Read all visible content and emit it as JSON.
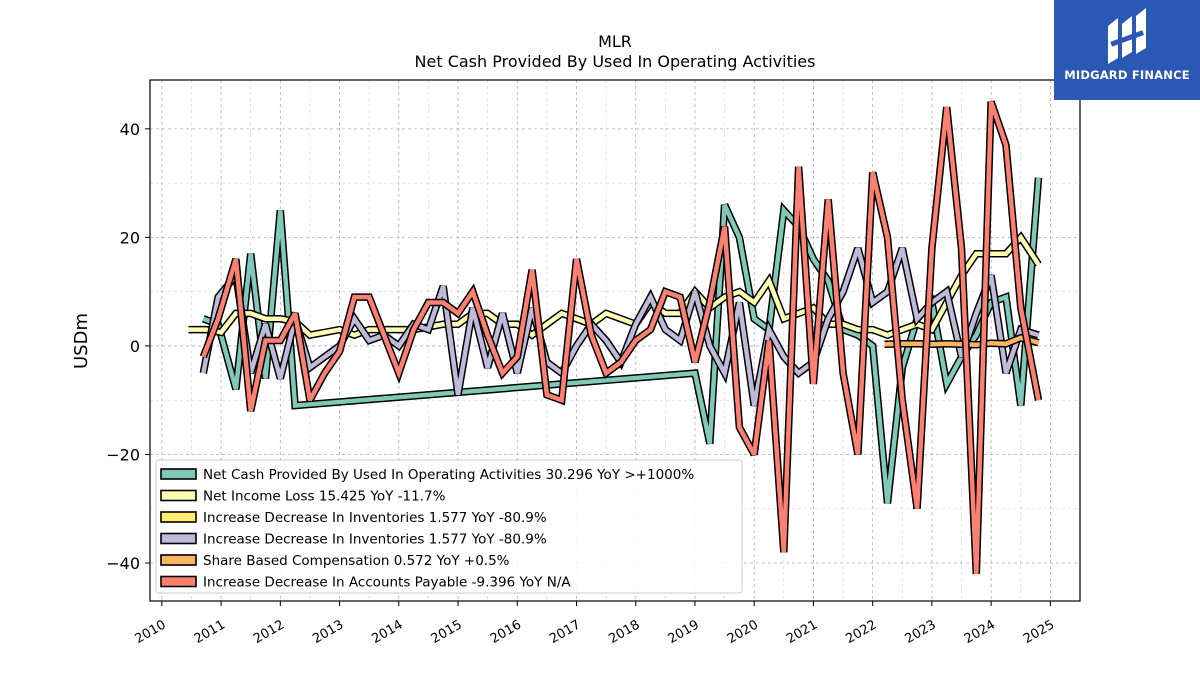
{
  "logo": {
    "text": "MIDGARD FINANCE",
    "color": "#2a58b4"
  },
  "chart_data": {
    "type": "line",
    "title": "MLR",
    "subtitle": "Net Cash Provided By Used In Operating Activities",
    "xlabel": "",
    "ylabel": "USDm",
    "xlim": [
      2009.8,
      2025.5
    ],
    "ylim": [
      -47,
      49
    ],
    "grid": true,
    "legend_position": "lower-left",
    "x_ticks": [
      "2010",
      "2011",
      "2012",
      "2013",
      "2014",
      "2015",
      "2016",
      "2017",
      "2018",
      "2019",
      "2020",
      "2021",
      "2022",
      "2023",
      "2024",
      "2025"
    ],
    "y_ticks": [
      -40,
      -20,
      0,
      20,
      40
    ],
    "y_tick_labels": [
      "−40",
      "−20",
      "0",
      "20",
      "40"
    ],
    "series": [
      {
        "name": "Net Cash Provided By Used In Operating Activities",
        "legend": "Net Cash Provided By Used In Operating Activities  30.296 YoY >+1000%",
        "color": "#7fc9b8",
        "x": [
          2010.7,
          2010.95,
          2011.25,
          2011.5,
          2011.75,
          2012.0,
          2012.25,
          2019.0,
          2019.25,
          2019.5,
          2019.75,
          2020.0,
          2020.25,
          2020.5,
          2020.75,
          2021.0,
          2021.25,
          2021.5,
          2021.75,
          2022.0,
          2022.25,
          2022.5,
          2022.75,
          2023.0,
          2023.25,
          2023.5,
          2023.75,
          2024.0,
          2024.25,
          2024.5,
          2024.8
        ],
        "y": [
          5,
          4,
          -8,
          17,
          -6,
          25,
          -11,
          -5,
          -18,
          26,
          20,
          5,
          3,
          25,
          22,
          16,
          12,
          3,
          2,
          0,
          -29,
          -4,
          5,
          8,
          -7,
          -2,
          2,
          8,
          9,
          -11,
          31
        ]
      },
      {
        "name": "Net Income Loss",
        "legend": "Net Income Loss  15.425 YoY -11.7%",
        "color": "#ffffb3",
        "x": [
          2010.45,
          2010.75,
          2011.0,
          2011.25,
          2011.5,
          2011.75,
          2012.0,
          2012.25,
          2012.5,
          2012.75,
          2013.0,
          2013.25,
          2013.5,
          2013.75,
          2014.0,
          2014.25,
          2014.5,
          2014.75,
          2015.0,
          2015.25,
          2015.5,
          2015.75,
          2016.0,
          2016.25,
          2016.5,
          2016.75,
          2017.0,
          2017.25,
          2017.5,
          2017.75,
          2018.0,
          2018.25,
          2018.5,
          2018.75,
          2019.0,
          2019.25,
          2019.5,
          2019.75,
          2020.0,
          2020.25,
          2020.5,
          2020.75,
          2021.0,
          2021.25,
          2021.5,
          2021.75,
          2022.0,
          2022.25,
          2022.5,
          2022.75,
          2023.0,
          2023.25,
          2023.5,
          2023.75,
          2024.0,
          2024.25,
          2024.5,
          2024.8
        ],
        "y": [
          3,
          3,
          2.5,
          6,
          6,
          5,
          5,
          4.5,
          2,
          2.5,
          3,
          2,
          3,
          3,
          3,
          3,
          3.5,
          4,
          4,
          6,
          6,
          4,
          4,
          2,
          4,
          6,
          5,
          4,
          6,
          5,
          4,
          8,
          6,
          6,
          10,
          7,
          9,
          10,
          8,
          12,
          5,
          6,
          7,
          4,
          4,
          3,
          3,
          2,
          3,
          4,
          3,
          8,
          13,
          17,
          17,
          17,
          20,
          15
        ]
      },
      {
        "name": "Increase Decrease In Inventories",
        "legend": "Increase Decrease In Inventories  1.577 YoY -80.9%",
        "color": "#ffed6f",
        "x": [],
        "y": []
      },
      {
        "name": "Increase Decrease In Inventories",
        "legend": "Increase Decrease In Inventories  1.577 YoY -80.9%",
        "color": "#bebada",
        "x": [
          2010.7,
          2010.95,
          2011.25,
          2011.5,
          2011.75,
          2012.0,
          2012.25,
          2012.5,
          2012.75,
          2013.0,
          2013.25,
          2013.5,
          2013.75,
          2014.0,
          2014.25,
          2014.5,
          2014.75,
          2015.0,
          2015.25,
          2015.5,
          2015.75,
          2016.0,
          2016.25,
          2016.5,
          2016.75,
          2017.0,
          2017.25,
          2017.5,
          2017.75,
          2018.0,
          2018.25,
          2018.5,
          2018.75,
          2019.0,
          2019.25,
          2019.5,
          2019.75,
          2020.0,
          2020.25,
          2020.5,
          2020.75,
          2021.0,
          2021.25,
          2021.5,
          2021.75,
          2022.0,
          2022.25,
          2022.5,
          2022.75,
          2023.0,
          2023.25,
          2023.5,
          2023.75,
          2024.0,
          2024.25,
          2024.5,
          2024.8
        ],
        "y": [
          -5,
          9,
          13,
          -5,
          4,
          -6,
          5,
          -4,
          -2,
          0,
          5,
          1,
          2,
          0,
          4,
          3,
          11,
          -9,
          7,
          -4,
          6,
          -5,
          7,
          -3,
          -5,
          0,
          4,
          1,
          -3,
          4,
          9,
          3,
          1,
          10,
          0,
          -5,
          8,
          -11,
          3,
          -2,
          -5,
          -3,
          5,
          10,
          18,
          8,
          10,
          18,
          5,
          8,
          10,
          -2,
          6,
          13,
          -5,
          3,
          2
        ]
      },
      {
        "name": "Share Based Compensation",
        "legend": "Share Based Compensation  0.572 YoY +0.5%",
        "color": "#fdb462",
        "x": [
          2022.2,
          2022.5,
          2022.75,
          2023.0,
          2023.25,
          2023.5,
          2023.75,
          2024.0,
          2024.25,
          2024.5,
          2024.8
        ],
        "y": [
          0.3,
          0.4,
          0.4,
          0.3,
          0.4,
          0.3,
          0.2,
          0.5,
          0.4,
          1.5,
          0.6
        ]
      },
      {
        "name": "Increase Decrease In Accounts Payable",
        "legend": "Increase Decrease In Accounts Payable  -9.396 YoY N/A",
        "color": "#fb8072",
        "x": [
          2010.7,
          2010.95,
          2011.25,
          2011.5,
          2011.75,
          2012.0,
          2012.25,
          2012.5,
          2012.75,
          2013.0,
          2013.25,
          2013.5,
          2013.75,
          2014.0,
          2014.25,
          2014.5,
          2014.75,
          2015.0,
          2015.25,
          2015.5,
          2015.75,
          2016.0,
          2016.25,
          2016.5,
          2016.75,
          2017.0,
          2017.25,
          2017.5,
          2017.75,
          2018.0,
          2018.25,
          2018.5,
          2018.75,
          2019.0,
          2019.25,
          2019.5,
          2019.75,
          2020.0,
          2020.25,
          2020.5,
          2020.75,
          2021.0,
          2021.25,
          2021.5,
          2021.75,
          2022.0,
          2022.25,
          2022.5,
          2022.75,
          2023.0,
          2023.25,
          2023.5,
          2023.75,
          2024.0,
          2024.25,
          2024.5,
          2024.8
        ],
        "y": [
          -2,
          5,
          16,
          -12,
          1,
          1,
          6,
          -10,
          -5,
          -1,
          9,
          9,
          2,
          -5,
          3,
          8,
          8,
          6,
          10,
          2,
          -5,
          -2,
          14,
          -9,
          -10,
          16,
          2,
          -5,
          -3,
          1,
          3,
          10,
          9,
          -3,
          8,
          22,
          -15,
          -20,
          1,
          -38,
          33,
          -7,
          27,
          -5,
          -20,
          32,
          20,
          -10,
          -30,
          18,
          44,
          18,
          -42,
          45,
          37,
          7,
          -10
        ]
      }
    ]
  }
}
